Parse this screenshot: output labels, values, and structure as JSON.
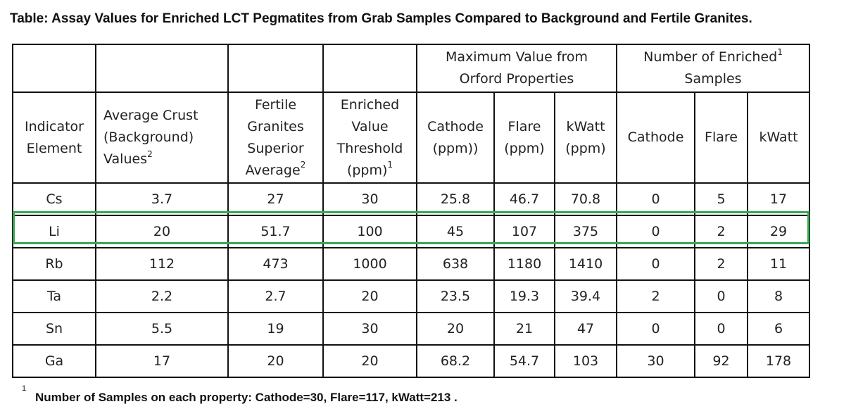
{
  "title": "Table: Assay Values for Enriched LCT Pegmatites from Grab Samples Compared to Background and Fertile Granites.",
  "group_headers": {
    "max_value": [
      "Maximum Value from",
      "Orford Properties"
    ],
    "enriched_count_line1": "Number of Enriched",
    "enriched_count_sup": "1",
    "enriched_count_line2": "Samples"
  },
  "column_headers": {
    "indicator": [
      "Indicator",
      "Element"
    ],
    "avg_crust": [
      "Average Crust",
      "(Background)",
      "Values"
    ],
    "avg_crust_sup": "2",
    "fertile": [
      "Fertile",
      "Granites",
      "Superior",
      "Average"
    ],
    "fertile_sup": "2",
    "enriched_threshold": [
      "Enriched",
      "Value",
      "Threshold",
      "(ppm)"
    ],
    "enriched_threshold_sup": "1",
    "max_cathode": [
      "Cathode",
      "(ppm))"
    ],
    "max_flare": [
      "Flare",
      "(ppm)"
    ],
    "max_kwatt": [
      "kWatt",
      "(ppm)"
    ],
    "count_cathode": "Cathode",
    "count_flare": "Flare",
    "count_kwatt": "kWatt"
  },
  "rows": [
    [
      "Cs",
      "3.7",
      "27",
      "30",
      "25.8",
      "46.7",
      "70.8",
      "0",
      "5",
      "17"
    ],
    [
      "Li",
      "20",
      "51.7",
      "100",
      "45",
      "107",
      "375",
      "0",
      "2",
      "29"
    ],
    [
      "Rb",
      "112",
      "473",
      "1000",
      "638",
      "1180",
      "1410",
      "0",
      "2",
      "11"
    ],
    [
      "Ta",
      "2.2",
      "2.7",
      "20",
      "23.5",
      "19.3",
      "39.4",
      "2",
      "0",
      "8"
    ],
    [
      "Sn",
      "5.5",
      "19",
      "30",
      "20",
      "21",
      "47",
      "0",
      "0",
      "6"
    ],
    [
      "Ga",
      "17",
      "20",
      "20",
      "68.2",
      "54.7",
      "103",
      "30",
      "92",
      "178"
    ]
  ],
  "highlight_color": "#3aa655",
  "footnote": {
    "marker": "1",
    "text": "Number of Samples on each property: Cathode=30,  Flare=117,  kWatt=213 ."
  }
}
